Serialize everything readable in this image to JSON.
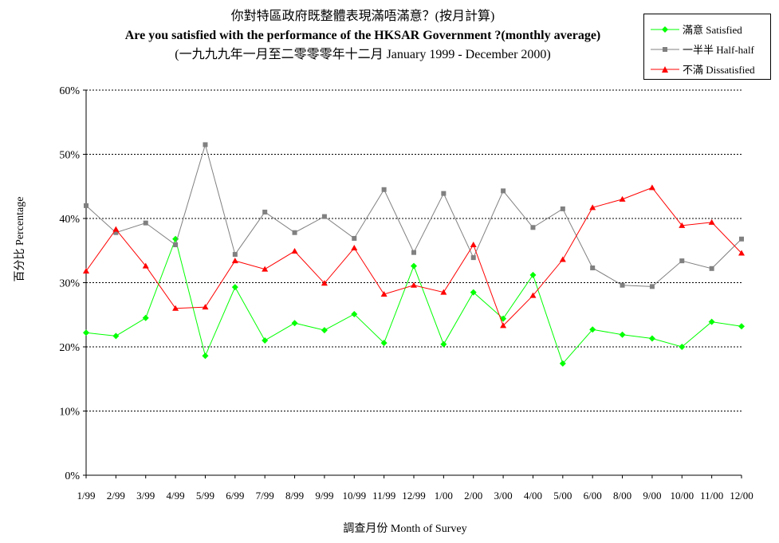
{
  "chart_data": {
    "type": "line",
    "title": "你對特區政府既整體表現滿唔滿意？(按月計算)",
    "subtitle": "Are you satisfied with the performance of the HKSAR Government ?(monthly average)",
    "subtitle2": "(一九九九年一月至二零零零年十二月 January 1999 - December 2000)",
    "xlabel": "調查月份 Month of Survey",
    "ylabel": "百分比 Percentage",
    "ylim": [
      0,
      60
    ],
    "yticks": [
      "0%",
      "10%",
      "20%",
      "30%",
      "40%",
      "50%",
      "60%"
    ],
    "ytick_values": [
      0,
      10,
      20,
      30,
      40,
      50,
      60
    ],
    "grid": "horizontal dotted",
    "legend_position": "top-right",
    "categories": [
      "1/99",
      "2/99",
      "3/99",
      "4/99",
      "5/99",
      "6/99",
      "7/99",
      "8/99",
      "9/99",
      "10/99",
      "11/99",
      "12/99",
      "1/00",
      "2/00",
      "3/00",
      "4/00",
      "5/00",
      "6/00",
      "8/00",
      "9/00",
      "10/00",
      "11/00",
      "12/00"
    ],
    "series": [
      {
        "name": "滿意 Satisfied",
        "color": "#00ff00",
        "marker": "diamond",
        "values": [
          22.2,
          21.7,
          24.5,
          36.8,
          18.6,
          29.3,
          21.0,
          23.7,
          22.6,
          25.1,
          20.6,
          32.6,
          20.4,
          28.5,
          24.4,
          31.2,
          17.4,
          22.7,
          21.9,
          21.3,
          20.0,
          23.9,
          23.2
        ]
      },
      {
        "name": "一半半 Half-half",
        "color": "#808080",
        "marker": "square",
        "values": [
          42.0,
          37.8,
          39.3,
          35.9,
          51.5,
          34.4,
          41.0,
          37.8,
          40.3,
          36.9,
          44.5,
          34.7,
          43.9,
          33.9,
          44.3,
          38.6,
          41.5,
          32.3,
          29.6,
          29.4,
          33.4,
          32.2,
          36.8
        ]
      },
      {
        "name": "不滿 Dissatisfied",
        "color": "#ff0000",
        "marker": "triangle",
        "values": [
          31.8,
          38.3,
          32.6,
          26.0,
          26.2,
          33.4,
          32.1,
          34.9,
          29.9,
          35.4,
          28.2,
          29.6,
          28.5,
          35.9,
          23.3,
          28.0,
          33.6,
          41.7,
          43.0,
          44.8,
          38.9,
          39.4,
          34.6
        ]
      }
    ]
  }
}
